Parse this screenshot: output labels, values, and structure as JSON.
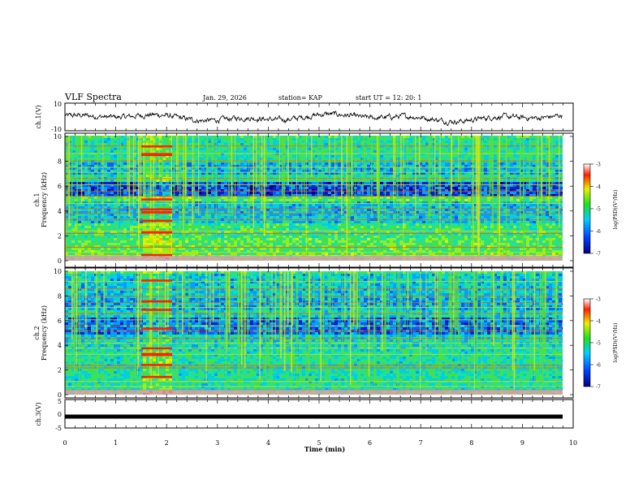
{
  "header": {
    "title": "VLF Spectra",
    "date": "Jan. 29, 2026",
    "station": "station= KAP",
    "start": "start  UT =   12: 20: 1"
  },
  "chart_data": [
    {
      "type": "line",
      "name": "ch1-waveform",
      "ylabel": "ch.1(V)",
      "ylim": [
        -10,
        10
      ],
      "yticks": [
        "10",
        "-10"
      ],
      "xlim": [
        0,
        10
      ],
      "series_description": "noisy voltage trace around -3 to 5 V over 0-9.8 min"
    },
    {
      "type": "heatmap",
      "name": "ch1-spectrogram",
      "ylabel_channel": "ch.1",
      "ylabel": "Frequency (kHz)",
      "ylim": [
        0,
        10
      ],
      "yticks": [
        "0",
        "2",
        "4",
        "6",
        "8",
        "10"
      ],
      "xlim": [
        0,
        10
      ]
    },
    {
      "type": "heatmap",
      "name": "ch2-spectrogram",
      "ylabel_channel": "ch.2",
      "ylabel": "Frequency (kHz)",
      "ylim": [
        0,
        10
      ],
      "yticks": [
        "0",
        "2",
        "4",
        "6",
        "8",
        "10"
      ],
      "xlim": [
        0,
        10
      ]
    },
    {
      "type": "line",
      "name": "ch3-waveform",
      "ylabel": "ch.3(V)",
      "ylim": [
        -5,
        5
      ],
      "yticks": [
        "5",
        "0",
        "-5"
      ],
      "value": -1.0,
      "xlim": [
        0,
        10
      ]
    }
  ],
  "xaxis": {
    "label": "Time  (min)",
    "ticks": [
      "0",
      "1",
      "2",
      "3",
      "4",
      "5",
      "6",
      "7",
      "8",
      "9",
      "10"
    ]
  },
  "colorbar": {
    "label": "log(PSD)(V²/Hz)",
    "ticks": [
      "-3",
      "-4",
      "-5",
      "-6",
      "-7"
    ],
    "range": [
      -7,
      -3
    ]
  },
  "colors": {
    "low": "#0000a0",
    "mid": "#00c8c8",
    "green": "#30e030",
    "yellow": "#e8e800",
    "high": "#e00000"
  }
}
